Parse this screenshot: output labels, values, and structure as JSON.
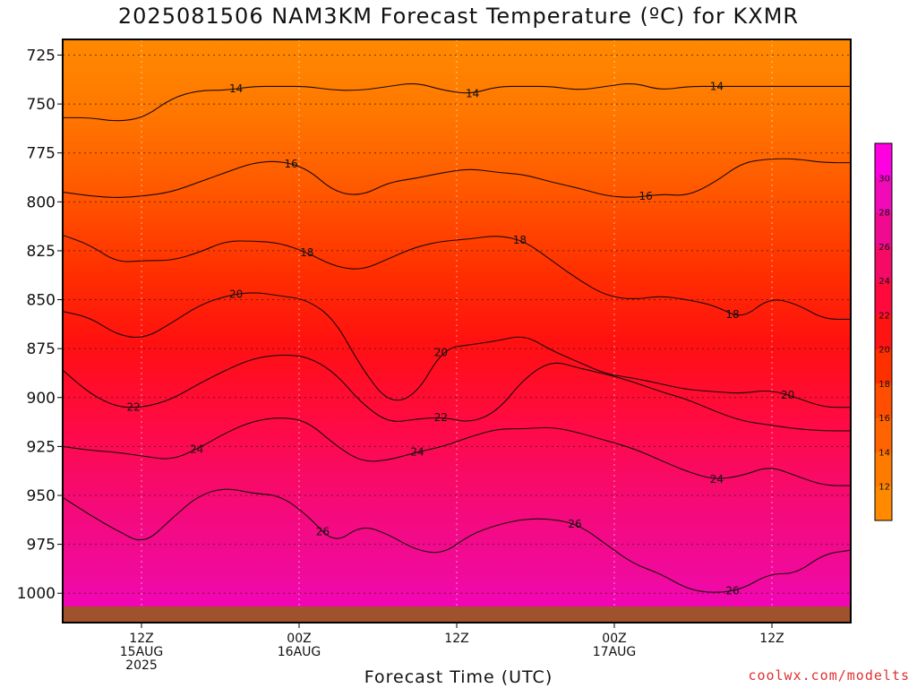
{
  "title": "2025081506 NAM3KM Forecast Temperature (ºC) for KXMR",
  "xlabel": "Forecast Time (UTC)",
  "credit": "coolwx.com/modelts",
  "chart_data": {
    "type": "heatmap",
    "title": "2025081506 NAM3KM Forecast Temperature (ºC) for KXMR",
    "xlabel": "Forecast Time (UTC)",
    "ylabel": "",
    "y_axis": {
      "scale": "inverted",
      "ylim": [
        1015,
        717
      ],
      "ticks": [
        725,
        750,
        775,
        800,
        825,
        850,
        875,
        900,
        925,
        950,
        975,
        1000
      ]
    },
    "x_axis": {
      "xlim": [
        "2025-08-15 06Z",
        "2025-08-17 18Z"
      ],
      "ticks": [
        {
          "time": "2025-08-15 12Z",
          "lines": [
            "12Z",
            "15AUG",
            "2025"
          ]
        },
        {
          "time": "2025-08-16 00Z",
          "lines": [
            "00Z",
            "16AUG"
          ]
        },
        {
          "time": "2025-08-16 12Z",
          "lines": [
            "12Z"
          ]
        },
        {
          "time": "2025-08-17 00Z",
          "lines": [
            "00Z",
            "17AUG"
          ]
        },
        {
          "time": "2025-08-17 12Z",
          "lines": [
            "12Z"
          ]
        }
      ]
    },
    "grid": true,
    "colorbar": {
      "placement": "right",
      "levels": [
        10,
        12,
        14,
        16,
        18,
        20,
        22,
        24,
        26,
        28,
        30,
        32
      ],
      "labels": [
        "12",
        "14",
        "16",
        "18",
        "20",
        "22",
        "24",
        "26",
        "28",
        "30"
      ],
      "colors": [
        "#ff8a00",
        "#ff7b00",
        "#ff6400",
        "#ff4e00",
        "#ff3000",
        "#ff1414",
        "#ff0a3c",
        "#f50a66",
        "#f00a90",
        "#f00ab8",
        "#ff00e0"
      ]
    },
    "contours": [
      {
        "label": "14",
        "pressure_profile": [
          757,
          757,
          759,
          757,
          747,
          743,
          743,
          741,
          741,
          741,
          743,
          743,
          741,
          739,
          743,
          745,
          741,
          741,
          741,
          743,
          741,
          739,
          743,
          741,
          741,
          741,
          741,
          741,
          741,
          741
        ]
      },
      {
        "label": "16",
        "pressure_profile": [
          795,
          797,
          798,
          797,
          795,
          790,
          785,
          780,
          779,
          783,
          795,
          797,
          790,
          788,
          785,
          783,
          785,
          786,
          790,
          793,
          797,
          798,
          796,
          797,
          790,
          780,
          778,
          778,
          780,
          780
        ]
      },
      {
        "label": "18",
        "pressure_profile": [
          817,
          822,
          831,
          830,
          830,
          826,
          820,
          820,
          821,
          826,
          833,
          835,
          829,
          823,
          820,
          819,
          817,
          820,
          830,
          840,
          848,
          850,
          848,
          850,
          853,
          860,
          849,
          852,
          860,
          860
        ]
      },
      {
        "label": "20",
        "pressure_profile": [
          856,
          859,
          868,
          870,
          862,
          853,
          848,
          846,
          848,
          850,
          860,
          885,
          903,
          899,
          875,
          873,
          871,
          868,
          876,
          882,
          888,
          890,
          893,
          896,
          897,
          898,
          896,
          900,
          905,
          905
        ]
      },
      {
        "label": "22",
        "pressure_profile": [
          886,
          898,
          905,
          905,
          901,
          893,
          886,
          880,
          878,
          879,
          887,
          903,
          913,
          911,
          910,
          913,
          907,
          890,
          881,
          885,
          888,
          892,
          897,
          901,
          907,
          912,
          914,
          916,
          917,
          917
        ]
      },
      {
        "label": "24",
        "pressure_profile": [
          925,
          927,
          928,
          930,
          932,
          926,
          918,
          912,
          910,
          912,
          924,
          933,
          932,
          928,
          925,
          920,
          916,
          916,
          915,
          918,
          922,
          926,
          932,
          938,
          942,
          940,
          935,
          940,
          945,
          945
        ]
      },
      {
        "label": "26",
        "pressure_profile": [
          951,
          960,
          968,
          975,
          962,
          950,
          946,
          949,
          950,
          960,
          975,
          965,
          970,
          978,
          980,
          970,
          965,
          962,
          962,
          965,
          975,
          985,
          990,
          998,
          1000,
          998,
          990,
          990,
          980,
          978
        ]
      }
    ]
  }
}
